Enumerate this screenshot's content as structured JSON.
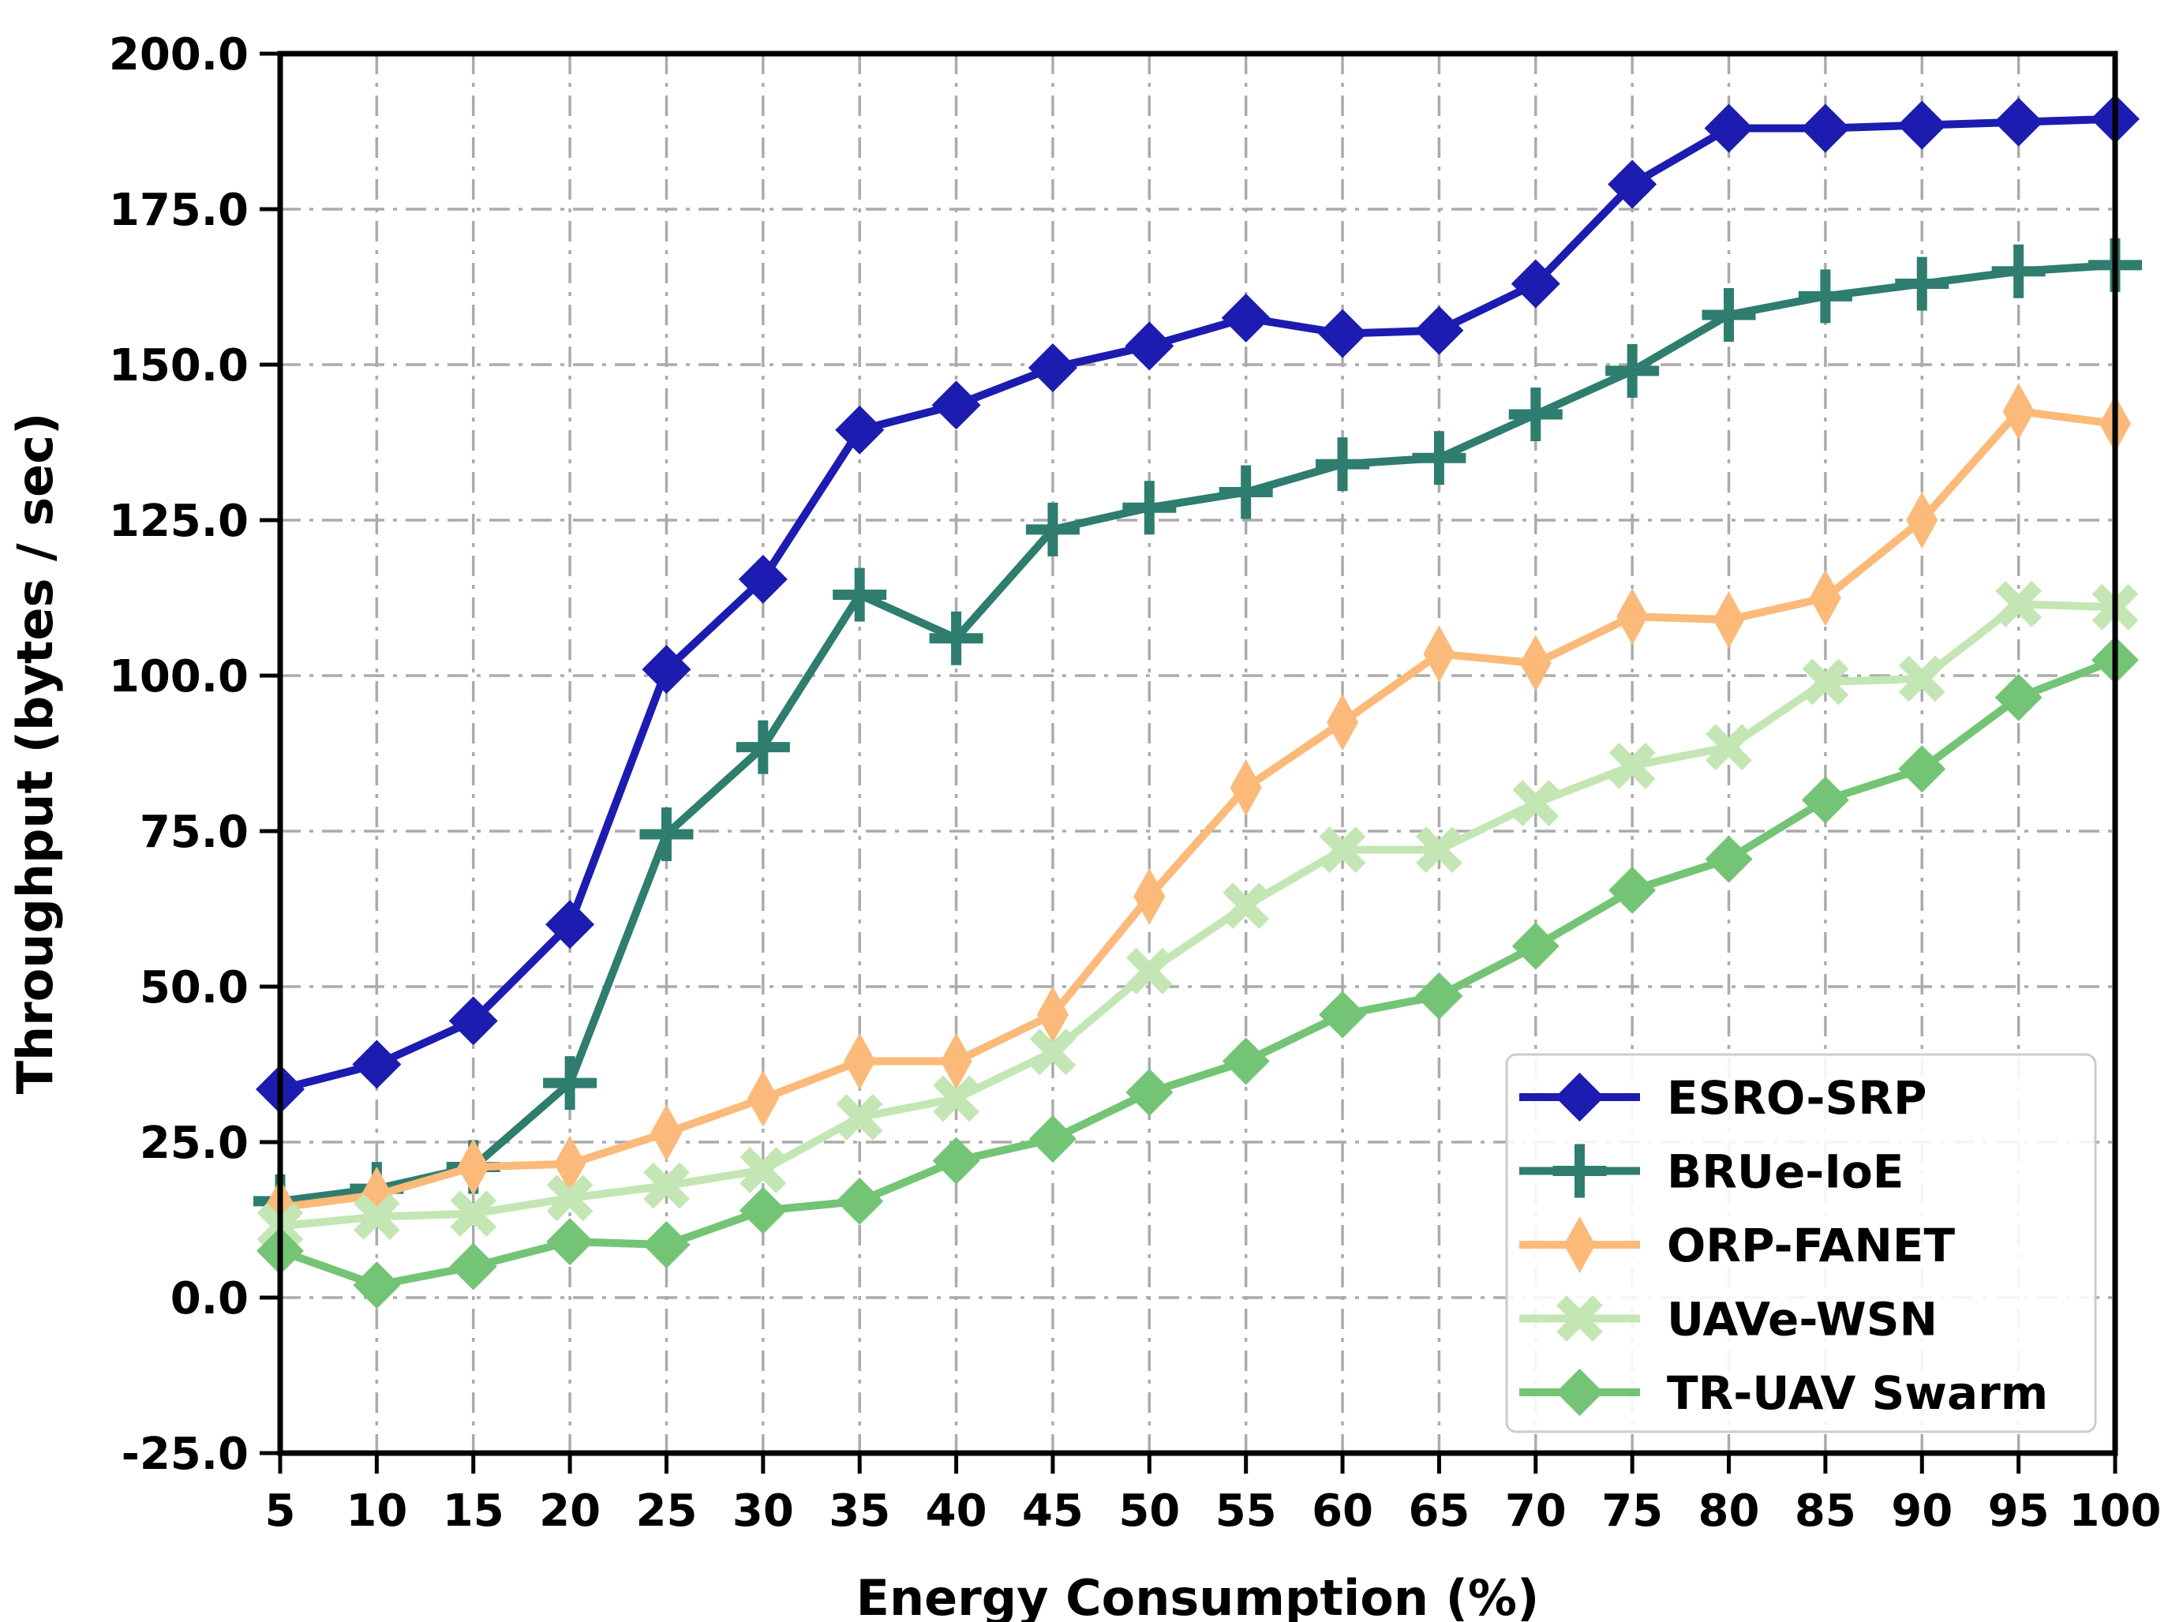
{
  "chart_data": {
    "type": "line",
    "title": "",
    "xlabel": "Energy Consumption (%)",
    "ylabel": "Throughput (bytes / sec)",
    "xlim": [
      5,
      100
    ],
    "ylim": [
      -25,
      200
    ],
    "grid": true,
    "grid_style": "dash-dot",
    "legend_position": "lower-right-inside",
    "x": [
      5,
      10,
      15,
      20,
      25,
      30,
      35,
      40,
      45,
      50,
      55,
      60,
      65,
      70,
      75,
      80,
      85,
      90,
      95,
      100
    ],
    "xtick_labels": [
      "5",
      "10",
      "15",
      "20",
      "25",
      "30",
      "35",
      "40",
      "45",
      "50",
      "55",
      "60",
      "65",
      "70",
      "75",
      "80",
      "85",
      "90",
      "95",
      "100"
    ],
    "ytick_values": [
      200,
      175,
      150,
      125,
      100,
      75,
      50,
      25,
      0,
      -25
    ],
    "ytick_labels": [
      "200.0",
      "175.0",
      "150.0",
      "125.0",
      "100.0",
      "75.0",
      "50.0",
      "25.0",
      "0.0",
      "-25.0"
    ],
    "series": [
      {
        "name": "ESRO-SRP",
        "color": "#1C1CB0",
        "marker": "diamond-large",
        "values": [
          33.5,
          37.5,
          44.5,
          60,
          101,
          115.5,
          139.5,
          143.5,
          149.5,
          153,
          157.5,
          155,
          155.5,
          163,
          179,
          188,
          188,
          188.5,
          189,
          189.5
        ]
      },
      {
        "name": "BRUe-IoE",
        "color": "#2E7D6E",
        "marker": "plus",
        "values": [
          15.5,
          17.5,
          21,
          34.5,
          74.5,
          88.5,
          113,
          106,
          123.5,
          127,
          129.5,
          134,
          135,
          142,
          149,
          158,
          161,
          163,
          165,
          166
        ]
      },
      {
        "name": "ORP-FANET",
        "color": "#FBBA7A",
        "marker": "thin-diamond",
        "values": [
          14.5,
          16.5,
          21,
          21.5,
          26.5,
          32,
          38,
          38,
          45.5,
          64.5,
          82,
          92.5,
          103.5,
          102,
          109.5,
          109,
          112.5,
          125,
          142.5,
          140.5
        ]
      },
      {
        "name": "UAVe-WSN",
        "color": "#C3E6B4",
        "marker": "x",
        "values": [
          11.5,
          13,
          13.5,
          16,
          18,
          20.5,
          29,
          32,
          39.5,
          52.5,
          63,
          72,
          72,
          79.5,
          85.5,
          88.5,
          99,
          99.5,
          111.5,
          111
        ]
      },
      {
        "name": "TR-UAV Swarm",
        "color": "#74C476",
        "marker": "diamond",
        "values": [
          7.5,
          2,
          5,
          9,
          8.5,
          14,
          15.5,
          22,
          25.5,
          33,
          38,
          45.5,
          48.5,
          56.5,
          65.5,
          70.5,
          80,
          85,
          96.5,
          102.5
        ]
      }
    ],
    "colors": {
      "grid": "#ABABAB",
      "spine": "#000000",
      "background": "#FFFFFF",
      "legend_border": "#CCCCCC"
    }
  }
}
